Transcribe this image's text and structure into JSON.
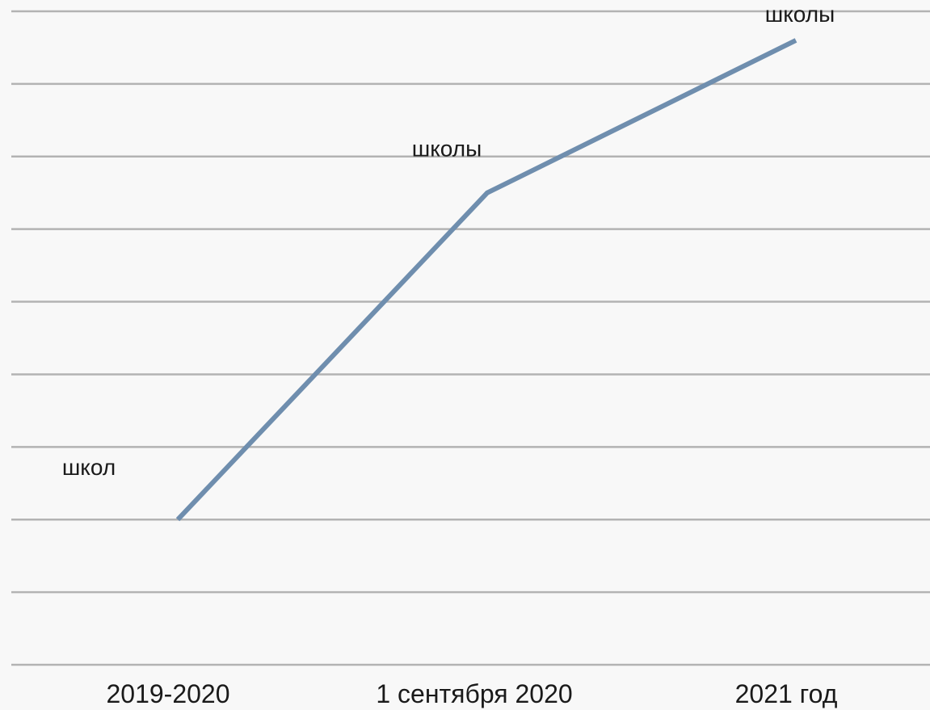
{
  "chart_data": {
    "type": "line",
    "categories": [
      "2019-2020",
      "1 сентября 2020",
      "2021 год"
    ],
    "values": [
      2,
      6.5,
      8.6
    ],
    "data_labels": [
      "школ",
      "школы",
      "школы"
    ],
    "ylim": [
      0,
      9
    ],
    "grid": true,
    "legend": "none",
    "colors": {
      "line": "#6f8eae",
      "grid": "#b3b3b3",
      "background": "#f8f8f8"
    }
  }
}
